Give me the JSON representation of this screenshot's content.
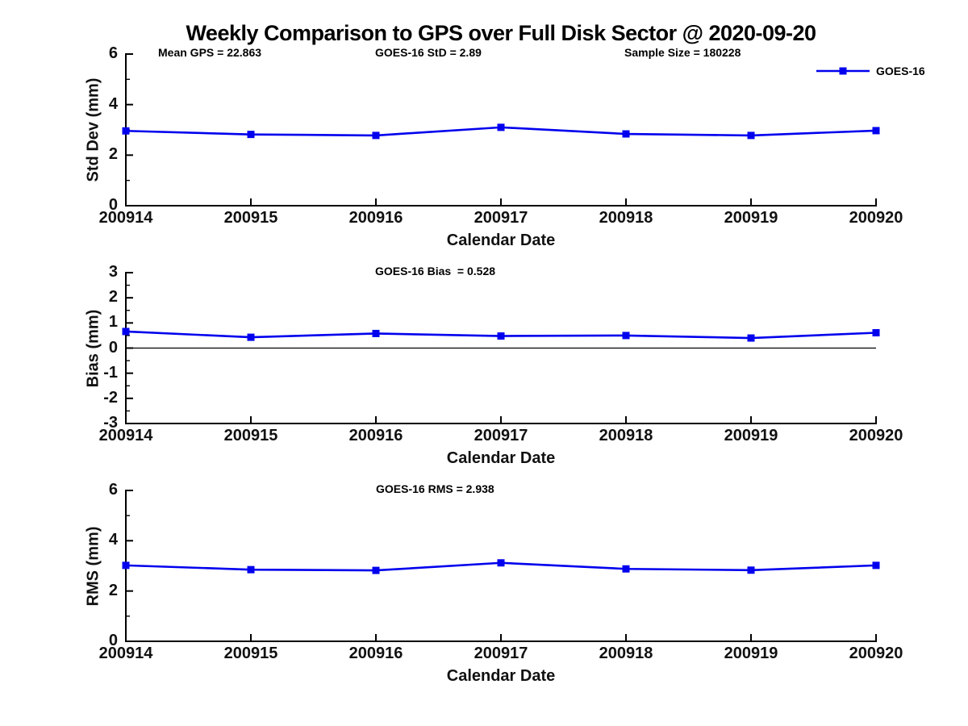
{
  "figure": {
    "title": "Weekly Comparison to GPS over Full Disk Sector @ 2020-09-20",
    "background": "#ffffff"
  },
  "legend": {
    "label": "GOES-16",
    "position": "top-right",
    "marker": "filled-square"
  },
  "colors": {
    "series": "#0000ee",
    "axis": "#000000",
    "zero_line": "#000000",
    "text": "#111111"
  },
  "chart_data": [
    {
      "type": "line",
      "categories": [
        "200914",
        "200915",
        "200916",
        "200917",
        "200918",
        "200919",
        "200920"
      ],
      "series": [
        {
          "name": "GOES-16",
          "values": [
            2.96,
            2.82,
            2.78,
            3.1,
            2.84,
            2.78,
            2.97
          ]
        }
      ],
      "xlabel": "Calendar Date",
      "ylabel": "Std Dev (mm)",
      "ylim": [
        0,
        6
      ],
      "yticks": [
        0,
        2,
        4,
        6
      ],
      "minor_yticks": [
        1,
        3,
        5
      ],
      "grid": false,
      "zero_line": false,
      "marker": "square",
      "annotations": [
        {
          "text": "Mean GPS = 22.863",
          "x": 196
        },
        {
          "text": "GOES-16 StD = 2.89",
          "x": 465
        },
        {
          "text": "Sample Size = 180228",
          "x": 774
        }
      ]
    },
    {
      "type": "line",
      "categories": [
        "200914",
        "200915",
        "200916",
        "200917",
        "200918",
        "200919",
        "200920"
      ],
      "series": [
        {
          "name": "GOES-16",
          "values": [
            0.66,
            0.43,
            0.58,
            0.48,
            0.5,
            0.4,
            0.61
          ]
        }
      ],
      "xlabel": "Calendar Date",
      "ylabel": "Bias (mm)",
      "ylim": [
        -3,
        3
      ],
      "yticks": [
        -3,
        -2,
        -1,
        0,
        1,
        2,
        3
      ],
      "minor_yticks": [
        -2.5,
        -1.5,
        -0.5,
        0.5,
        1.5,
        2.5
      ],
      "grid": false,
      "zero_line": true,
      "marker": "square",
      "annotations": [
        {
          "text": "GOES-16 Bias  = 0.528",
          "x": 465
        }
      ]
    },
    {
      "type": "line",
      "categories": [
        "200914",
        "200915",
        "200916",
        "200917",
        "200918",
        "200919",
        "200920"
      ],
      "series": [
        {
          "name": "GOES-16",
          "values": [
            3.02,
            2.85,
            2.82,
            3.12,
            2.88,
            2.83,
            3.02
          ]
        }
      ],
      "xlabel": "Calendar Date",
      "ylabel": "RMS (mm)",
      "ylim": [
        0,
        6
      ],
      "yticks": [
        0,
        2,
        4,
        6
      ],
      "minor_yticks": [
        1,
        3,
        5
      ],
      "grid": false,
      "zero_line": false,
      "marker": "square",
      "annotations": [
        {
          "text": "GOES-16 RMS = 2.938",
          "x": 466
        }
      ]
    }
  ]
}
